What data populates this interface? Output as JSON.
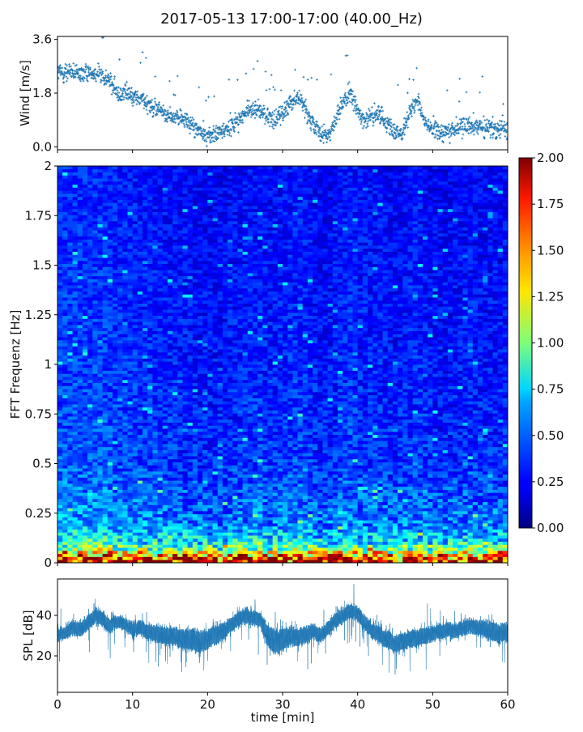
{
  "figure": {
    "title": "2017-05-13 17:00-17:00 (40.00_Hz)"
  },
  "chart_data": [
    {
      "type": "scatter",
      "ylabel": "Wind [m/s]",
      "xlabel": "",
      "xlim": [
        0,
        60
      ],
      "ylim": [
        -0.1,
        3.7
      ],
      "yticks": [
        "0.0",
        "1.8",
        "3.6"
      ],
      "grid": false,
      "color": "#1f77b4",
      "marker": "+",
      "trend_x": [
        0,
        1,
        2,
        3,
        4,
        5,
        6,
        7,
        8,
        9,
        10,
        11,
        12,
        13,
        14,
        15,
        16,
        17,
        18,
        19,
        20,
        21,
        22,
        23,
        24,
        25,
        26,
        27,
        28,
        29,
        30,
        31,
        32,
        33,
        34,
        35,
        36,
        37,
        38,
        39,
        40,
        41,
        42,
        43,
        44,
        45,
        46,
        47,
        48,
        49,
        50,
        51,
        52,
        53,
        54,
        55,
        56,
        57,
        58,
        59,
        60
      ],
      "trend_y": [
        2.5,
        2.5,
        2.5,
        2.4,
        2.5,
        2.5,
        2.4,
        2.2,
        1.8,
        1.8,
        1.7,
        1.6,
        1.5,
        1.3,
        1.2,
        1.0,
        1.0,
        0.9,
        0.7,
        0.5,
        0.4,
        0.4,
        0.5,
        0.7,
        0.9,
        1.1,
        1.3,
        1.2,
        1.0,
        0.9,
        1.1,
        1.5,
        1.7,
        1.3,
        0.8,
        0.4,
        0.4,
        0.8,
        1.5,
        1.8,
        1.2,
        0.9,
        1.0,
        1.1,
        0.8,
        0.4,
        0.5,
        1.2,
        1.5,
        0.8,
        0.6,
        0.5,
        0.5,
        0.6,
        0.7,
        0.8,
        0.7,
        0.6,
        0.6,
        0.6,
        0.7
      ]
    },
    {
      "type": "heatmap",
      "ylabel": "FFT Frequenz [Hz]",
      "xlabel": "",
      "xlim": [
        0,
        60
      ],
      "ylim": [
        0,
        2
      ],
      "yticks": [
        "0",
        "0.25",
        "0.5",
        "0.75",
        "1",
        "1.25",
        "1.5",
        "1.75",
        "2"
      ],
      "colormap": "jet",
      "colorbar": {
        "range": [
          0,
          2
        ],
        "ticks": [
          "0.00",
          "0.25",
          "0.50",
          "0.75",
          "1.00",
          "1.25",
          "1.50",
          "1.75",
          "2.00"
        ]
      },
      "description_values": {
        "freq_hz": [
          0.0,
          0.02,
          0.05,
          0.1,
          0.2,
          0.5,
          1.0,
          2.0
        ],
        "typical_level": [
          1.9,
          1.6,
          1.1,
          0.75,
          0.5,
          0.35,
          0.3,
          0.25
        ]
      }
    },
    {
      "type": "area",
      "ylabel": "SPL [dB]",
      "xlabel": "time [min]",
      "xlim": [
        0,
        60
      ],
      "ylim": [
        2,
        58
      ],
      "xticks": [
        "0",
        "10",
        "20",
        "30",
        "40",
        "50",
        "60"
      ],
      "yticks": [
        "20",
        "40"
      ],
      "color": "#1f77b4",
      "x": [
        0,
        1,
        2,
        3,
        4,
        5,
        6,
        7,
        8,
        9,
        10,
        11,
        12,
        13,
        14,
        15,
        16,
        17,
        18,
        19,
        20,
        21,
        22,
        23,
        24,
        25,
        26,
        27,
        28,
        29,
        30,
        31,
        32,
        33,
        34,
        35,
        36,
        37,
        38,
        39,
        40,
        41,
        42,
        43,
        44,
        45,
        46,
        47,
        48,
        49,
        50,
        51,
        52,
        53,
        54,
        55,
        56,
        57,
        58,
        59,
        60
      ],
      "y": [
        30,
        32,
        34,
        33,
        36,
        40,
        38,
        35,
        37,
        36,
        33,
        34,
        32,
        31,
        30,
        30,
        29,
        28,
        28,
        27,
        28,
        30,
        32,
        35,
        38,
        40,
        39,
        38,
        30,
        27,
        28,
        30,
        29,
        30,
        32,
        30,
        33,
        37,
        40,
        42,
        41,
        36,
        32,
        30,
        28,
        26,
        27,
        28,
        29,
        30,
        31,
        32,
        33,
        32,
        34,
        35,
        34,
        33,
        32,
        31,
        32
      ],
      "spread": [
        5,
        5,
        6,
        6,
        6,
        6,
        6,
        6,
        5,
        5,
        6,
        6,
        6,
        7,
        7,
        7,
        8,
        8,
        9,
        9,
        8,
        8,
        7,
        6,
        6,
        6,
        6,
        6,
        9,
        10,
        9,
        8,
        7,
        7,
        6,
        6,
        6,
        6,
        6,
        6,
        6,
        6,
        6,
        7,
        7,
        7,
        7,
        7,
        7,
        7,
        6,
        6,
        6,
        6,
        6,
        6,
        6,
        7,
        8,
        8,
        7
      ]
    }
  ]
}
